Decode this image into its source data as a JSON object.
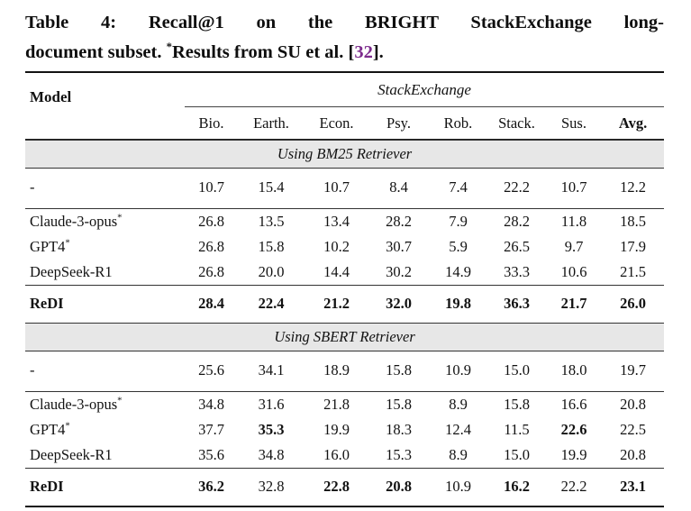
{
  "caption": {
    "line1": "Table 4: Recall@1 on the BRIGHT StackExchange long-",
    "line2_prefix": "document subset. ",
    "line2_star": "*",
    "line2_text": "Results from SU et al. ",
    "cite_open": "[",
    "cite_number": "32",
    "cite_close": "]."
  },
  "colors": {
    "citation_purple": "#7D2C8D",
    "section_band_bg": "#E7E7E7",
    "rule_color": "#131313"
  },
  "table": {
    "model_header": "Model",
    "group_header": "StackExchange",
    "columns": [
      "Bio.",
      "Earth.",
      "Econ.",
      "Psy.",
      "Rob.",
      "Stack.",
      "Sus.",
      "Avg."
    ],
    "columns_bold": [
      false,
      false,
      false,
      false,
      false,
      false,
      false,
      true
    ],
    "sections": [
      {
        "title": "Using BM25 Retriever",
        "row_groups": [
          [
            {
              "model": "-",
              "sup": "",
              "bold_model": false,
              "values": [
                "10.7",
                "15.4",
                "10.7",
                "8.4",
                "7.4",
                "22.2",
                "10.7",
                "12.2"
              ],
              "bold_values": [
                false,
                false,
                false,
                false,
                false,
                false,
                false,
                false
              ]
            }
          ],
          [
            {
              "model": "Claude-3-opus",
              "sup": "*",
              "bold_model": false,
              "values": [
                "26.8",
                "13.5",
                "13.4",
                "28.2",
                "7.9",
                "28.2",
                "11.8",
                "18.5"
              ],
              "bold_values": [
                false,
                false,
                false,
                false,
                false,
                false,
                false,
                false
              ]
            },
            {
              "model": "GPT4",
              "sup": "*",
              "bold_model": false,
              "values": [
                "26.8",
                "15.8",
                "10.2",
                "30.7",
                "5.9",
                "26.5",
                "9.7",
                "17.9"
              ],
              "bold_values": [
                false,
                false,
                false,
                false,
                false,
                false,
                false,
                false
              ]
            },
            {
              "model": "DeepSeek-R1",
              "sup": "",
              "bold_model": false,
              "values": [
                "26.8",
                "20.0",
                "14.4",
                "30.2",
                "14.9",
                "33.3",
                "10.6",
                "21.5"
              ],
              "bold_values": [
                false,
                false,
                false,
                false,
                false,
                false,
                false,
                false
              ]
            }
          ],
          [
            {
              "model": "ReDI",
              "sup": "",
              "bold_model": true,
              "values": [
                "28.4",
                "22.4",
                "21.2",
                "32.0",
                "19.8",
                "36.3",
                "21.7",
                "26.0"
              ],
              "bold_values": [
                true,
                true,
                true,
                true,
                true,
                true,
                true,
                true
              ]
            }
          ]
        ]
      },
      {
        "title": "Using SBERT Retriever",
        "row_groups": [
          [
            {
              "model": "-",
              "sup": "",
              "bold_model": false,
              "values": [
                "25.6",
                "34.1",
                "18.9",
                "15.8",
                "10.9",
                "15.0",
                "18.0",
                "19.7"
              ],
              "bold_values": [
                false,
                false,
                false,
                false,
                false,
                false,
                false,
                false
              ]
            }
          ],
          [
            {
              "model": "Claude-3-opus",
              "sup": "*",
              "bold_model": false,
              "values": [
                "34.8",
                "31.6",
                "21.8",
                "15.8",
                "8.9",
                "15.8",
                "16.6",
                "20.8"
              ],
              "bold_values": [
                false,
                false,
                false,
                false,
                false,
                false,
                false,
                false
              ]
            },
            {
              "model": "GPT4",
              "sup": "*",
              "bold_model": false,
              "values": [
                "37.7",
                "35.3",
                "19.9",
                "18.3",
                "12.4",
                "11.5",
                "22.6",
                "22.5"
              ],
              "bold_values": [
                false,
                true,
                false,
                false,
                false,
                false,
                true,
                false
              ]
            },
            {
              "model": "DeepSeek-R1",
              "sup": "",
              "bold_model": false,
              "values": [
                "35.6",
                "34.8",
                "16.0",
                "15.3",
                "8.9",
                "15.0",
                "19.9",
                "20.8"
              ],
              "bold_values": [
                false,
                false,
                false,
                false,
                false,
                false,
                false,
                false
              ]
            }
          ],
          [
            {
              "model": "ReDI",
              "sup": "",
              "bold_model": true,
              "values": [
                "36.2",
                "32.8",
                "22.8",
                "20.8",
                "10.9",
                "16.2",
                "22.2",
                "23.1"
              ],
              "bold_values": [
                true,
                false,
                true,
                true,
                false,
                true,
                false,
                true
              ]
            }
          ]
        ]
      }
    ]
  }
}
